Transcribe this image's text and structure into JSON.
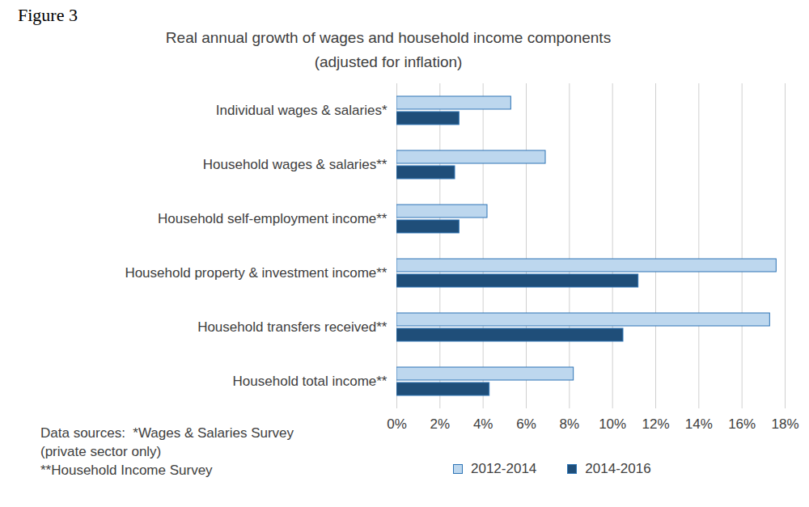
{
  "chart_data": {
    "type": "bar",
    "orientation": "horizontal",
    "annotations": [
      "Figure 3"
    ],
    "title": "Real annual growth of wages and household income components",
    "subtitle": "(adjusted for inflation)",
    "caption": [
      "Data sources:  *Wages & Salaries Survey",
      "(private sector only)",
      "**Household Income Survey"
    ],
    "categories": [
      "Individual wages & salaries*",
      "Household wages & salaries**",
      "Household self-employment income**",
      "Household property & investment income**",
      "Household transfers received**",
      "Household total income**"
    ],
    "series": [
      {
        "name": "2012-2014",
        "color": "#BDD7EE",
        "values": [
          5.3,
          6.9,
          4.2,
          17.6,
          17.3,
          8.2
        ]
      },
      {
        "name": "2014-2016",
        "color": "#1F4E79",
        "values": [
          2.9,
          2.7,
          2.9,
          11.2,
          10.5,
          4.3
        ]
      }
    ],
    "xlim": [
      0,
      18
    ],
    "xticks": [
      {
        "value": 0,
        "label": "0%"
      },
      {
        "value": 2,
        "label": "2%"
      },
      {
        "value": 4,
        "label": "4%"
      },
      {
        "value": 6,
        "label": "6%"
      },
      {
        "value": 8,
        "label": "8%"
      },
      {
        "value": 10,
        "label": "10%"
      },
      {
        "value": 12,
        "label": "12%"
      },
      {
        "value": 14,
        "label": "14%"
      },
      {
        "value": 16,
        "label": "16%"
      },
      {
        "value": 18,
        "label": "18%"
      }
    ],
    "grid": true,
    "legend": "bottom"
  }
}
